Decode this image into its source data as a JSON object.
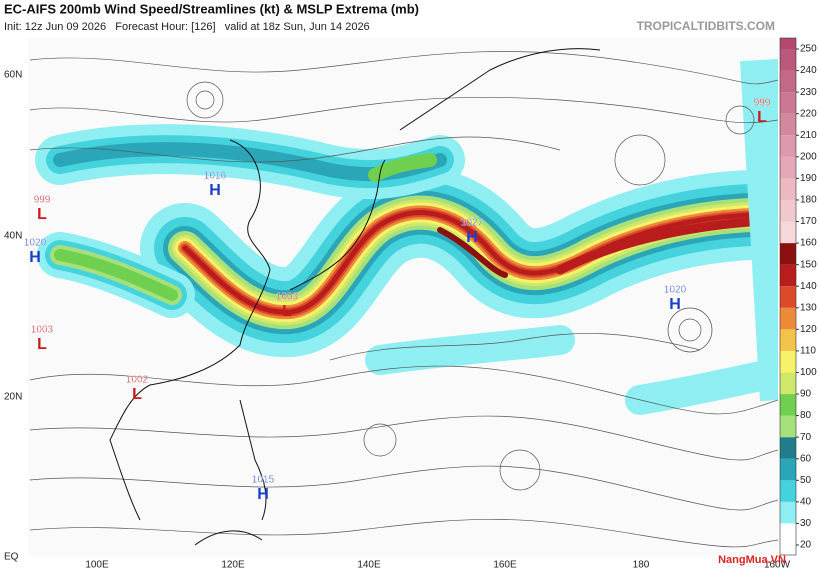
{
  "header": {
    "title": "EC-AIFS 200mb Wind Speed/Streamlines (kt) & MSLP Extrema (mb)",
    "subtitle": "Init: 12z Jun 09 2026   Forecast Hour: [126]   valid at 18z Sun, Jun 14 2026",
    "credit": "TROPICALTIDBITS.COM"
  },
  "lat_labels": [
    "60N",
    "40N",
    "20N",
    "EQ"
  ],
  "lon_labels": [
    "100E",
    "120E",
    "140E",
    "160E",
    "180",
    "160W"
  ],
  "colorbar": {
    "ticks": [
      20,
      30,
      40,
      50,
      60,
      70,
      80,
      90,
      100,
      110,
      120,
      130,
      140,
      150,
      160,
      170,
      180,
      190,
      200,
      210,
      220,
      230,
      240,
      250
    ],
    "colors": [
      "#ffffff",
      "#8eeef2",
      "#44d2dc",
      "#2aa6b8",
      "#1f7d8c",
      "#a6e07a",
      "#6fcf4f",
      "#cfe86a",
      "#f6f26a",
      "#f2c24a",
      "#ec8a3a",
      "#dc4a2a",
      "#b81c1c",
      "#8c1010",
      "#f4d8dc",
      "#f0c8d0",
      "#ecb8c4",
      "#e4a8b8",
      "#dc98ac",
      "#d488a0",
      "#cc7894",
      "#c46888",
      "#bc587c",
      "#b44870"
    ]
  },
  "centers": [
    {
      "kind": "L",
      "value": 999
    },
    {
      "kind": "H",
      "value": 1016
    },
    {
      "kind": "L",
      "value": 999
    },
    {
      "kind": "H",
      "value": 1020
    },
    {
      "kind": "H",
      "value": 1027
    },
    {
      "kind": "L",
      "value": 1003
    },
    {
      "kind": "L",
      "value": 1003
    },
    {
      "kind": "L",
      "value": 1002
    },
    {
      "kind": "H",
      "value": 1020
    },
    {
      "kind": "H",
      "value": 1015
    }
  ],
  "watermark": "NangMua.VN"
}
